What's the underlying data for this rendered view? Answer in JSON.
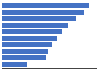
{
  "chart_data": {
    "type": "bar",
    "orientation": "horizontal",
    "categories": [
      null,
      null,
      null,
      null,
      null,
      null,
      null,
      null,
      null,
      null
    ],
    "values": [
      420,
      395,
      360,
      320,
      290,
      265,
      240,
      225,
      215,
      120
    ],
    "color": "#4472C4",
    "xlim": [
      0,
      460
    ],
    "xticks": [],
    "tick_labels": false,
    "grid": false
  }
}
